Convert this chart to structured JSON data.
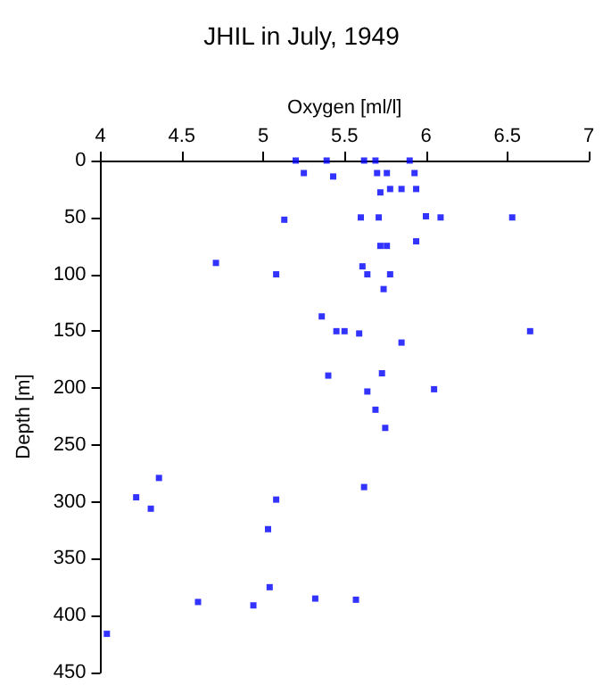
{
  "chart_data": {
    "type": "scatter",
    "title": "JHIL in July, 1949",
    "xlabel": "Oxygen [ml/l]",
    "ylabel": "Depth [m]",
    "xlim": [
      4,
      7
    ],
    "xticks": [
      4,
      4.5,
      5,
      5.5,
      6,
      6.5,
      7
    ],
    "ylim": [
      450,
      0
    ],
    "yticks": [
      0,
      50,
      100,
      150,
      200,
      250,
      300,
      350,
      400,
      450
    ],
    "grid": false,
    "marker": "square",
    "series": [
      {
        "color": "#0000ff",
        "x": [
          5.2,
          5.39,
          5.62,
          5.69,
          5.9,
          5.25,
          5.43,
          5.7,
          5.76,
          5.93,
          5.72,
          5.78,
          5.85,
          5.94,
          5.13,
          5.6,
          5.71,
          6.0,
          6.09,
          6.53,
          5.94,
          5.72,
          5.76,
          4.71,
          5.61,
          5.08,
          5.64,
          5.78,
          5.74,
          5.36,
          5.45,
          5.5,
          5.59,
          5.85,
          6.64,
          5.4,
          5.73,
          5.64,
          6.05,
          5.69,
          5.75,
          5.62,
          4.36,
          4.22,
          4.31,
          5.08,
          5.03,
          5.04,
          4.6,
          4.94,
          5.32,
          5.57,
          4.04
        ],
        "values": [
          0,
          0,
          0,
          0,
          0,
          11,
          14,
          11,
          11,
          11,
          28,
          25,
          25,
          25,
          52,
          50,
          50,
          49,
          50,
          50,
          71,
          75,
          75,
          90,
          93,
          100,
          100,
          100,
          113,
          137,
          150,
          150,
          152,
          160,
          150,
          189,
          187,
          203,
          201,
          219,
          235,
          287,
          279,
          296,
          306,
          298,
          324,
          375,
          388,
          391,
          385,
          386,
          416
        ]
      }
    ]
  }
}
